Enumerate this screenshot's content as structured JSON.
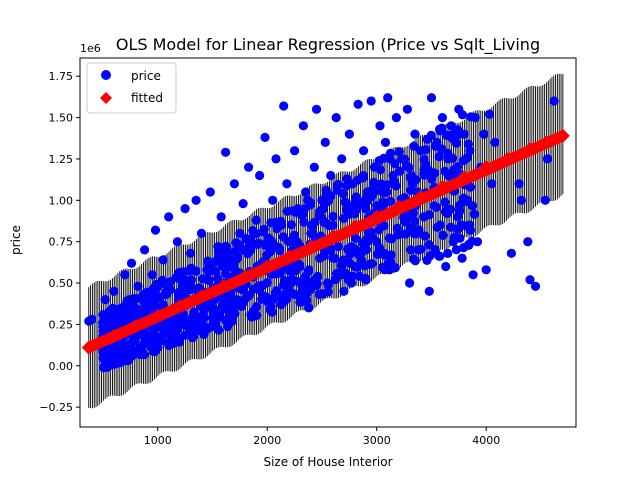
{
  "chart_data": {
    "type": "scatter",
    "title": "OLS Model for Linear Regression (Price vs Sqlt_Living",
    "xlabel": "Size of House Interior",
    "ylabel": "price",
    "y_offset_label": "1e6",
    "xlim": [
      290,
      4820
    ],
    "ylim": [
      -0.37,
      1.86
    ],
    "x_ticks": [
      1000,
      2000,
      3000,
      4000
    ],
    "x_tick_labels": [
      "1000",
      "2000",
      "3000",
      "4000"
    ],
    "y_ticks": [
      -0.25,
      0.0,
      0.25,
      0.5,
      0.75,
      1.0,
      1.25,
      1.5,
      1.75
    ],
    "y_tick_labels": [
      "−0.25",
      "0.00",
      "0.25",
      "0.50",
      "0.75",
      "1.00",
      "1.25",
      "1.50",
      "1.75"
    ],
    "grid": false,
    "legend_position": "upper-left",
    "legend": [
      {
        "label": "price",
        "marker": "circle",
        "color": "#0000ff"
      },
      {
        "label": "fitted",
        "marker": "diamond",
        "color": "#ff0000"
      }
    ],
    "series": [
      {
        "name": "price",
        "color": "#0000ff",
        "marker": "circle",
        "points": [
          [
            370,
            0.27
          ],
          [
            400,
            0.28
          ],
          [
            520,
            0.4
          ],
          [
            560,
            0.33
          ],
          [
            600,
            0.45
          ],
          [
            640,
            0.3
          ],
          [
            700,
            0.55
          ],
          [
            720,
            0.38
          ],
          [
            760,
            0.62
          ],
          [
            800,
            0.28
          ],
          [
            820,
            0.48
          ],
          [
            880,
            0.7
          ],
          [
            900,
            0.36
          ],
          [
            950,
            0.55
          ],
          [
            980,
            0.82
          ],
          [
            1000,
            0.3
          ],
          [
            1050,
            0.64
          ],
          [
            1080,
            0.45
          ],
          [
            1100,
            0.9
          ],
          [
            1150,
            0.35
          ],
          [
            1180,
            0.75
          ],
          [
            1200,
            0.55
          ],
          [
            1250,
            0.95
          ],
          [
            1280,
            0.4
          ],
          [
            1300,
            0.68
          ],
          [
            1350,
            1.0
          ],
          [
            1380,
            0.47
          ],
          [
            1400,
            0.8
          ],
          [
            1450,
            0.58
          ],
          [
            1480,
            1.05
          ],
          [
            1500,
            0.35
          ],
          [
            1550,
            0.72
          ],
          [
            1580,
            0.9
          ],
          [
            1600,
            0.5
          ],
          [
            1620,
            1.29
          ],
          [
            1650,
            0.62
          ],
          [
            1700,
            1.1
          ],
          [
            1720,
            0.4
          ],
          [
            1750,
            0.8
          ],
          [
            1780,
            0.98
          ],
          [
            1800,
            0.55
          ],
          [
            1830,
            1.2
          ],
          [
            1850,
            0.7
          ],
          [
            1880,
            0.3
          ],
          [
            1900,
            0.88
          ],
          [
            1930,
            1.15
          ],
          [
            1950,
            0.62
          ],
          [
            1980,
            1.38
          ],
          [
            2000,
            0.75
          ],
          [
            2020,
            0.4
          ],
          [
            2050,
            1.0
          ],
          [
            2080,
            1.25
          ],
          [
            2100,
            0.58
          ],
          [
            2130,
            0.85
          ],
          [
            2150,
            1.57
          ],
          [
            2180,
            1.1
          ],
          [
            2200,
            0.45
          ],
          [
            2230,
            0.7
          ],
          [
            2250,
            1.3
          ],
          [
            2280,
            0.95
          ],
          [
            2300,
            0.6
          ],
          [
            2330,
            1.45
          ],
          [
            2350,
            1.05
          ],
          [
            2380,
            0.35
          ],
          [
            2400,
            0.8
          ],
          [
            2430,
            1.2
          ],
          [
            2450,
            1.55
          ],
          [
            2480,
            0.65
          ],
          [
            2500,
            1.0
          ],
          [
            2530,
            1.35
          ],
          [
            2550,
            0.5
          ],
          [
            2580,
            1.15
          ],
          [
            2600,
            0.85
          ],
          [
            2630,
            1.5
          ],
          [
            2650,
            0.72
          ],
          [
            2680,
            1.25
          ],
          [
            2700,
            0.45
          ],
          [
            2730,
            0.95
          ],
          [
            2750,
            1.4
          ],
          [
            2780,
            1.1
          ],
          [
            2800,
            0.6
          ],
          [
            2830,
            1.58
          ],
          [
            2850,
            0.85
          ],
          [
            2880,
            1.3
          ],
          [
            2900,
            0.52
          ],
          [
            2930,
            1.05
          ],
          [
            2950,
            1.6
          ],
          [
            2980,
            1.2
          ],
          [
            3000,
            0.75
          ],
          [
            3030,
            1.45
          ],
          [
            3050,
            0.95
          ],
          [
            3080,
            1.35
          ],
          [
            3100,
            1.62
          ],
          [
            3130,
            0.62
          ],
          [
            3150,
            1.15
          ],
          [
            3180,
            1.5
          ],
          [
            3200,
            0.8
          ],
          [
            3230,
            1.25
          ],
          [
            3250,
            1.0
          ],
          [
            3280,
            1.55
          ],
          [
            3300,
            0.5
          ],
          [
            3330,
            1.1
          ],
          [
            3350,
            1.4
          ],
          [
            3380,
            0.7
          ],
          [
            3400,
            1.3
          ],
          [
            3430,
            0.9
          ],
          [
            3450,
            1.2
          ],
          [
            3480,
            0.45
          ],
          [
            3500,
            1.62
          ],
          [
            3520,
            1.05
          ],
          [
            3550,
            1.35
          ],
          [
            3580,
            0.85
          ],
          [
            3600,
            1.5
          ],
          [
            3630,
            0.6
          ],
          [
            3650,
            1.25
          ],
          [
            3680,
            1.45
          ],
          [
            3700,
            0.75
          ],
          [
            3720,
            1.15
          ],
          [
            3750,
            1.55
          ],
          [
            3780,
            0.65
          ],
          [
            3800,
            1.4
          ],
          [
            3830,
            1.0
          ],
          [
            3850,
            1.3
          ],
          [
            3880,
            0.55
          ],
          [
            3900,
            1.5
          ],
          [
            3920,
            0.75
          ],
          [
            3950,
            1.2
          ],
          [
            3980,
            1.4
          ],
          [
            4000,
            0.58
          ],
          [
            4030,
            1.52
          ],
          [
            4050,
            1.1
          ],
          [
            4080,
            1.35
          ],
          [
            4230,
            0.68
          ],
          [
            4300,
            1.1
          ],
          [
            4320,
            1.0
          ],
          [
            4380,
            0.75
          ],
          [
            4400,
            0.52
          ],
          [
            4450,
            0.48
          ],
          [
            4540,
            1.0
          ],
          [
            4560,
            1.25
          ],
          [
            4590,
            1.35
          ],
          [
            4620,
            1.6
          ]
        ]
      },
      {
        "name": "fitted",
        "color": "#ff0000",
        "marker": "diamond",
        "line": {
          "x_start": 370,
          "x_end": 4700,
          "y_start": 0.11,
          "y_end": 1.39
        },
        "points": [
          [
            370,
            0.11
          ],
          [
            600,
            0.18
          ],
          [
            800,
            0.24
          ],
          [
            1000,
            0.3
          ],
          [
            1200,
            0.36
          ],
          [
            1400,
            0.42
          ],
          [
            1600,
            0.48
          ],
          [
            1800,
            0.54
          ],
          [
            2000,
            0.6
          ],
          [
            2200,
            0.66
          ],
          [
            2400,
            0.72
          ],
          [
            2600,
            0.78
          ],
          [
            2800,
            0.84
          ],
          [
            3000,
            0.9
          ],
          [
            3200,
            0.96
          ],
          [
            3400,
            1.02
          ],
          [
            3600,
            1.08
          ],
          [
            3800,
            1.14
          ],
          [
            4000,
            1.2
          ],
          [
            4200,
            1.25
          ],
          [
            4400,
            1.31
          ],
          [
            4550,
            1.35
          ],
          [
            4700,
            1.39
          ]
        ]
      }
    ],
    "prediction_interval": {
      "color": "#000000",
      "x_start": 370,
      "x_end": 4700,
      "lower_start": -0.24,
      "lower_end": 1.05,
      "upper_start": 0.46,
      "upper_end": 1.75
    }
  }
}
